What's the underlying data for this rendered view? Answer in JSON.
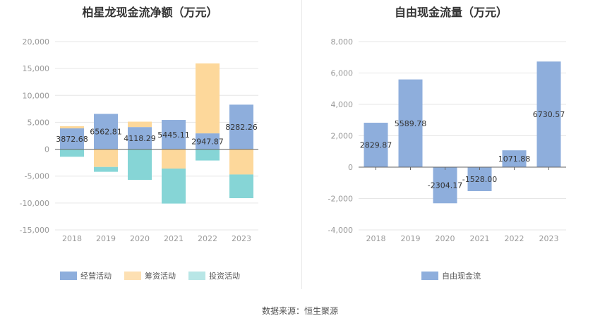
{
  "source": "数据来源：恒生聚源",
  "chart_data": [
    {
      "type": "bar",
      "stacked": true,
      "title": "柏星龙现金流净额（万元）",
      "categories": [
        "2018",
        "2019",
        "2020",
        "2021",
        "2022",
        "2023"
      ],
      "ylim": [
        -15000,
        20000
      ],
      "yticks": [
        20000,
        15000,
        10000,
        5000,
        0,
        -5000,
        -10000,
        -15000
      ],
      "ytick_labels": [
        "20,000",
        "15,000",
        "10,000",
        "5,000",
        "0",
        "-5,000",
        "-10,000",
        "-15,000"
      ],
      "grid": true,
      "legend_position": "bottom",
      "series": [
        {
          "name": "经营活动",
          "color": "#8eaedc",
          "values": [
            3872.68,
            6562.81,
            4118.29,
            5445.11,
            2947.87,
            8282.26
          ],
          "labels": [
            "3872.68",
            "6562.81",
            "4118.29",
            "5445.11",
            "2947.87",
            "8282.26"
          ]
        },
        {
          "name": "筹资活动",
          "color": "#fdd89b",
          "values": [
            400,
            -3300,
            1000,
            -3600,
            13000,
            -4700
          ]
        },
        {
          "name": "投资活动",
          "color": "#86d5d6",
          "values": [
            -1400,
            -900,
            -5700,
            -6500,
            -2100,
            -4400
          ]
        }
      ],
      "legend_colors": [
        "#8eaedc",
        "#fde0b3",
        "#b8e6e6"
      ]
    },
    {
      "type": "bar",
      "title": "自由现金流量（万元）",
      "categories": [
        "2018",
        "2019",
        "2020",
        "2021",
        "2022",
        "2023"
      ],
      "ylim": [
        -4000,
        8000
      ],
      "yticks": [
        8000,
        6000,
        4000,
        2000,
        0,
        -2000,
        -4000
      ],
      "ytick_labels": [
        "8,000",
        "6,000",
        "4,000",
        "2,000",
        "0",
        "-2,000",
        "-4,000"
      ],
      "grid": true,
      "legend_position": "bottom",
      "series": [
        {
          "name": "自由现金流",
          "color": "#8eaedc",
          "values": [
            2829.87,
            5589.78,
            -2304.17,
            -1528.0,
            1071.88,
            6730.57
          ],
          "labels": [
            "2829.87",
            "5589.78",
            "-2304.17",
            "-1528.00",
            "1071.88",
            "6730.57"
          ]
        }
      ]
    }
  ]
}
